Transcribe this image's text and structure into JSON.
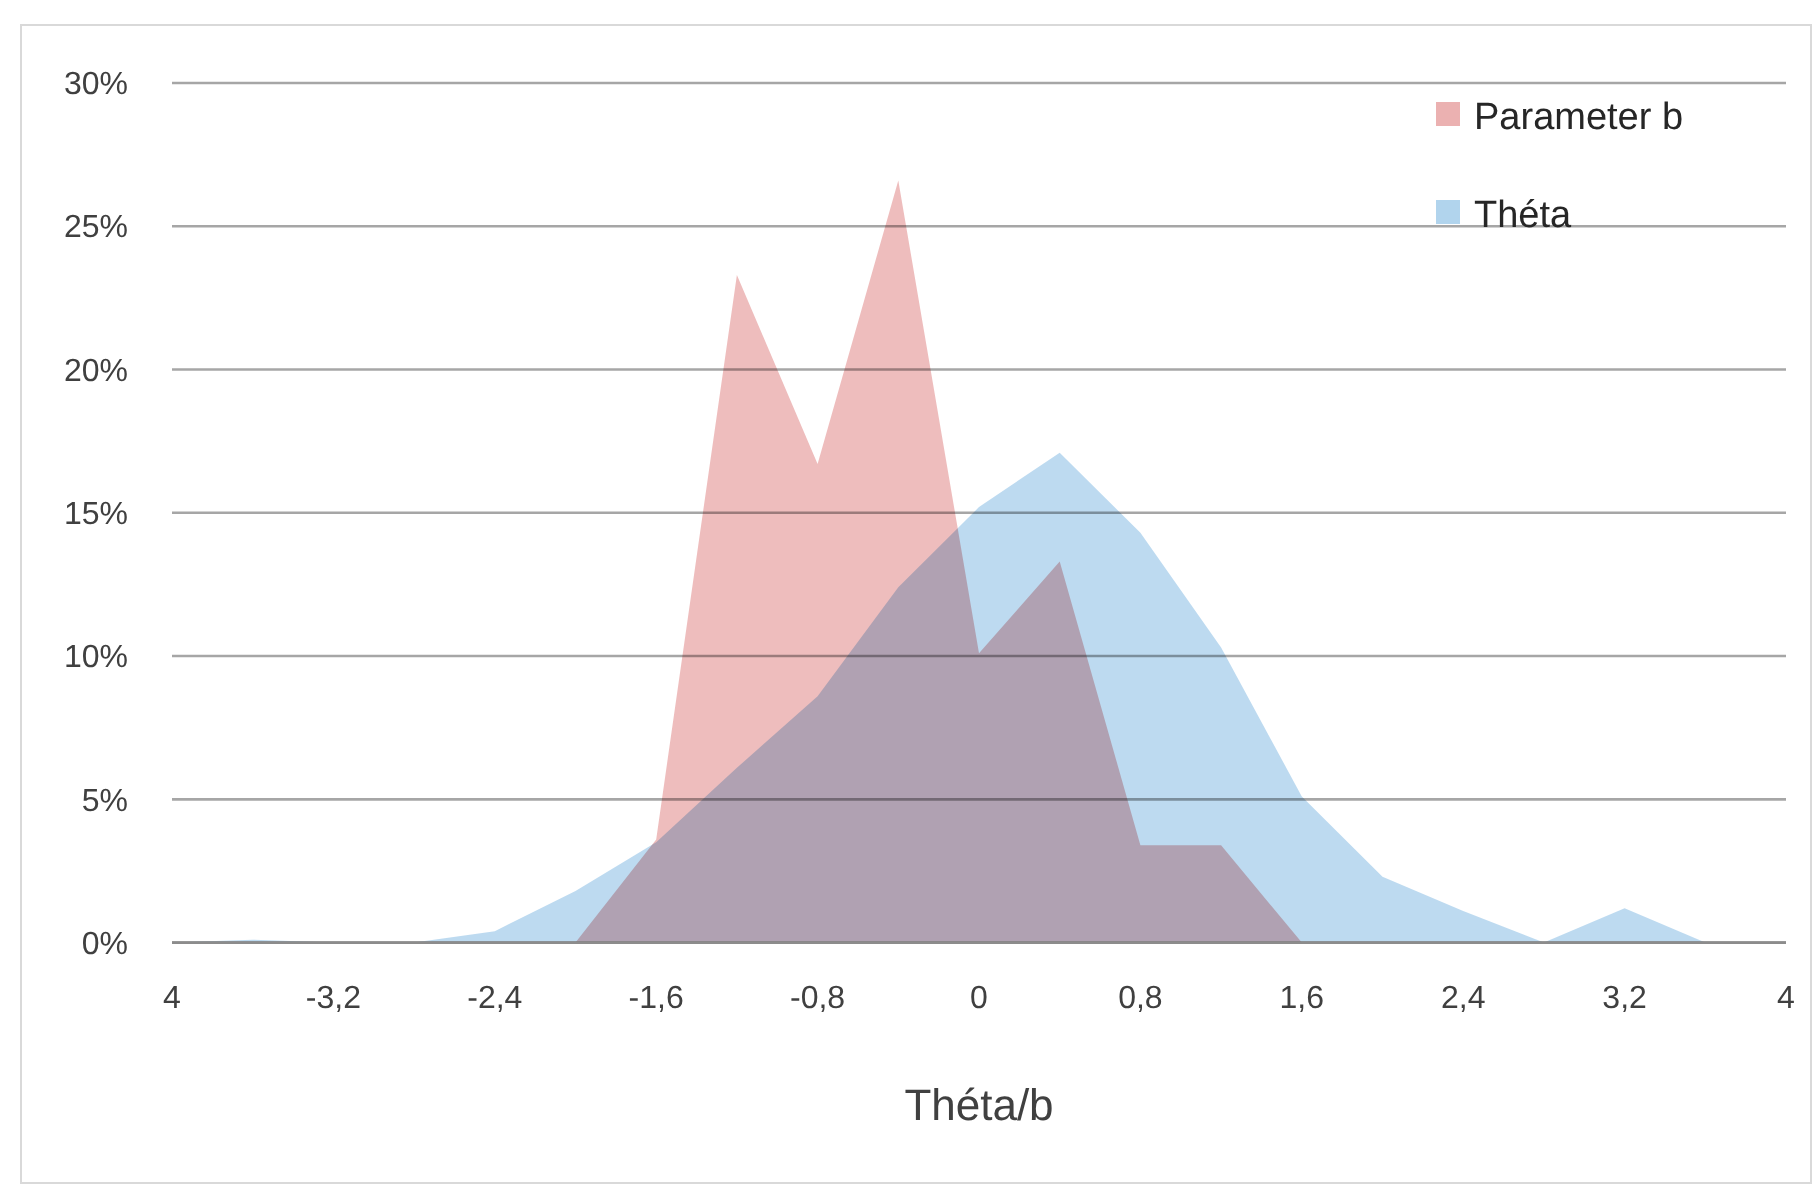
{
  "chart_data": {
    "type": "area",
    "xlabel": "Théta/b",
    "categories": [
      "4",
      null,
      "-3,2",
      null,
      "-2,4",
      null,
      "-1,6",
      null,
      "-0,8",
      null,
      "0",
      null,
      "0,8",
      null,
      "1,6",
      null,
      "2,4",
      null,
      "3,2",
      null,
      "4"
    ],
    "series": [
      {
        "name": "Parameter b",
        "color": "#ebb1b1",
        "values": [
          0,
          0,
          0,
          0,
          0,
          0,
          3.6,
          23.3,
          16.7,
          26.6,
          10.1,
          13.3,
          3.4,
          3.4,
          0,
          0,
          0,
          0,
          0,
          0,
          0
        ]
      },
      {
        "name": "Théta",
        "color": "#b1d4ed",
        "values": [
          0,
          0.1,
          0,
          0,
          0.4,
          1.8,
          3.5,
          6.1,
          8.6,
          12.4,
          15.2,
          17.1,
          14.3,
          10.3,
          5.1,
          2.3,
          1.1,
          0,
          1.2,
          0,
          0
        ]
      }
    ],
    "ylim": [
      0,
      30
    ],
    "yticks": [
      {
        "value": 0,
        "label": "0%"
      },
      {
        "value": 5,
        "label": "5%"
      },
      {
        "value": 10,
        "label": "10%"
      },
      {
        "value": 15,
        "label": "15%"
      },
      {
        "value": 20,
        "label": "20%"
      },
      {
        "value": 25,
        "label": "25%"
      },
      {
        "value": 30,
        "label": "30%"
      }
    ],
    "grid": "y",
    "legend": "top right"
  }
}
